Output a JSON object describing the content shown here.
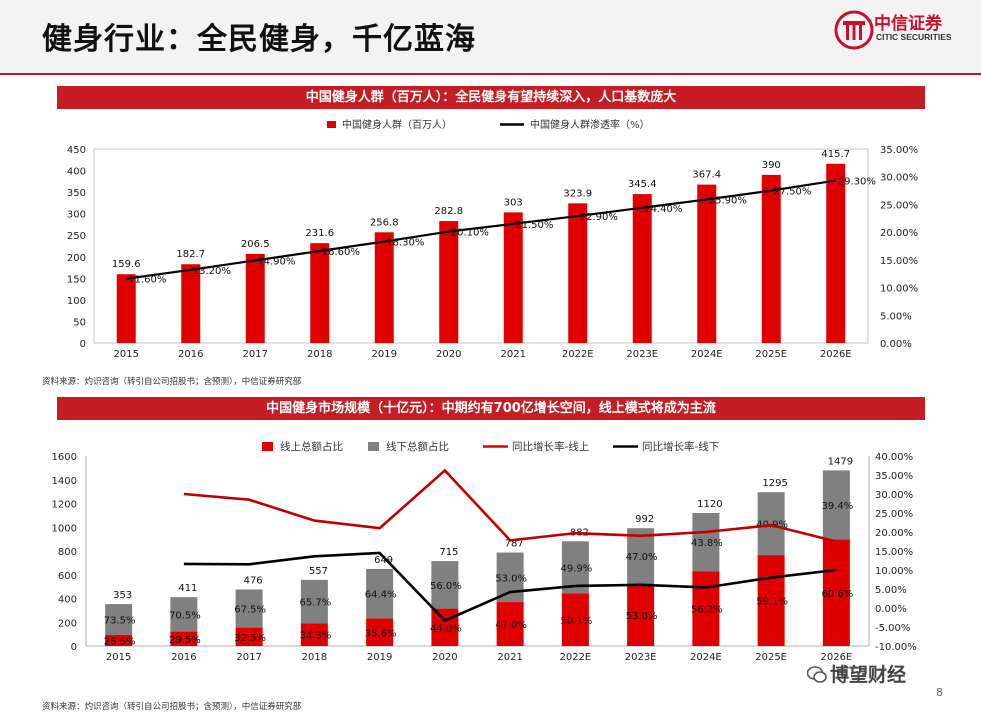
{
  "page": {
    "title": "健身行业：全民健身，千亿蓝海",
    "logo_name": "中信证券",
    "logo_sub": "CITIC SECURITIES",
    "page_number": "8",
    "watermark": "博望财经"
  },
  "colors": {
    "red": "#e00000",
    "gray": "#808080",
    "black": "#000000",
    "banner": "#c41e24"
  },
  "chart_data": [
    {
      "type": "bar",
      "banner": "中国健身人群（百万人）：全民健身有望持续深入，人口基数庞大",
      "source": "资料来源：灼识咨询（转引自公司招股书；含预测），中信证券研究部",
      "categories": [
        "2015",
        "2016",
        "2017",
        "2018",
        "2019",
        "2020",
        "2021",
        "2022E",
        "2023E",
        "2024E",
        "2025E",
        "2026E"
      ],
      "series": [
        {
          "name": "中国健身人群（百万人）",
          "type": "bar",
          "axis": "left",
          "values": [
            159.6,
            182.7,
            206.5,
            231.6,
            256.8,
            282.8,
            303,
            323.9,
            345.4,
            367.4,
            390,
            415.7
          ],
          "labels": [
            "159.6",
            "182.7",
            "206.5",
            "231.6",
            "256.8",
            "282.8",
            "303",
            "323.9",
            "345.4",
            "367.4",
            "390",
            "415.7"
          ]
        },
        {
          "name": "中国健身人群渗透率（%）",
          "type": "line",
          "axis": "right",
          "values": [
            11.6,
            13.2,
            14.9,
            16.6,
            18.3,
            20.1,
            21.5,
            22.9,
            24.4,
            25.9,
            27.5,
            29.3
          ],
          "labels": [
            "11.60%",
            "13.20%",
            "14.90%",
            "16.60%",
            "18.30%",
            "20.10%",
            "21.50%",
            "22.90%",
            "24.40%",
            "25.90%",
            "27.50%",
            "29.30%"
          ]
        }
      ],
      "ylim": [
        0,
        450
      ],
      "yticks": [
        "0",
        "50",
        "100",
        "150",
        "200",
        "250",
        "300",
        "350",
        "400",
        "450"
      ],
      "y2lim": [
        0,
        35
      ],
      "y2ticks": [
        "0.00%",
        "5.00%",
        "10.00%",
        "15.00%",
        "20.00%",
        "25.00%",
        "30.00%",
        "35.00%"
      ],
      "legend_position": "top"
    },
    {
      "type": "bar",
      "banner": "中国健身市场规模（十亿元）：中期约有700亿增长空间，线上模式将成为主流",
      "source": "资料来源：灼识咨询（转引自公司招股书；含预测），中信证券研究部",
      "categories": [
        "2015",
        "2016",
        "2017",
        "2018",
        "2019",
        "2020",
        "2021",
        "2022E",
        "2023E",
        "2024E",
        "2025E",
        "2026E"
      ],
      "totals": [
        353,
        411,
        476,
        557,
        649,
        715,
        787,
        882,
        992,
        1120,
        1295,
        1479
      ],
      "total_labels": [
        "353",
        "411",
        "476",
        "557",
        "649",
        "715",
        "787",
        "882",
        "992",
        "1120",
        "1295",
        "1479"
      ],
      "series": [
        {
          "name": "线上总额占比",
          "type": "stacked-bar",
          "axis": "left",
          "values": [
            26.5,
            29.5,
            32.5,
            34.3,
            35.6,
            44.0,
            47.0,
            50.1,
            53.0,
            56.2,
            59.1,
            60.6
          ],
          "labels": [
            "26.5%",
            "29.5%",
            "32.5%",
            "34.3%",
            "35.6%",
            "44.0%",
            "47.0%",
            "50.1%",
            "53.0%",
            "56.2%",
            "59.1%",
            "60.6%"
          ]
        },
        {
          "name": "线下总额占比",
          "type": "stacked-bar",
          "axis": "left",
          "values": [
            73.5,
            70.5,
            67.5,
            65.7,
            64.4,
            56.0,
            53.0,
            49.9,
            47.0,
            43.8,
            40.9,
            39.4
          ],
          "labels": [
            "73.5%",
            "70.5%",
            "67.5%",
            "65.7%",
            "64.4%",
            "56.0%",
            "53.0%",
            "49.9%",
            "47.0%",
            "43.8%",
            "40.9%",
            "39.4%"
          ]
        },
        {
          "name": "同比增长率-线上",
          "type": "line",
          "axis": "right",
          "values": [
            null,
            30.0,
            28.5,
            23.0,
            21.0,
            36.2,
            17.8,
            19.7,
            19.0,
            20.0,
            21.8,
            17.5
          ]
        },
        {
          "name": "同比增长率-线下",
          "type": "line",
          "axis": "right",
          "values": [
            null,
            11.6,
            11.5,
            13.6,
            14.5,
            -3.3,
            4.2,
            5.8,
            6.1,
            5.4,
            8.0,
            10.0
          ]
        }
      ],
      "ylim": [
        0,
        1600
      ],
      "yticks": [
        "0",
        "200",
        "400",
        "600",
        "800",
        "1000",
        "1200",
        "1400",
        "1600"
      ],
      "y2lim": [
        -10,
        40
      ],
      "y2ticks": [
        "-10.00%",
        "-5.00%",
        "0.00%",
        "5.00%",
        "10.00%",
        "15.00%",
        "20.00%",
        "25.00%",
        "30.00%",
        "35.00%",
        "40.00%"
      ],
      "legend_position": "top"
    }
  ]
}
